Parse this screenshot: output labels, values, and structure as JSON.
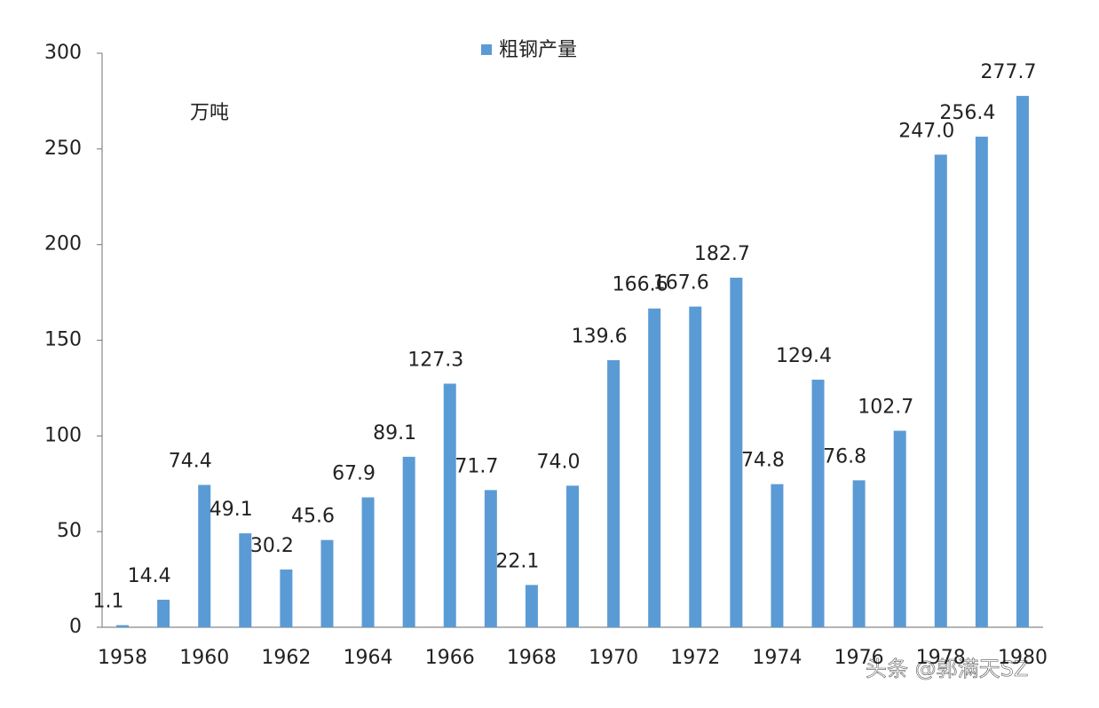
{
  "chart_data": {
    "type": "bar",
    "series": [
      {
        "name": "粗钢产量",
        "color": "#5b9bd5",
        "values": [
          1.1,
          14.4,
          74.4,
          49.1,
          30.2,
          45.6,
          67.9,
          89.1,
          127.3,
          71.7,
          22.1,
          74.0,
          139.6,
          166.6,
          167.6,
          182.7,
          74.8,
          129.4,
          76.8,
          102.7,
          247.0,
          256.4,
          277.7
        ],
        "value_labels": [
          "1.1",
          "14.4",
          "74.4",
          "49.1",
          "30.2",
          "45.6",
          "67.9",
          "89.1",
          "127.3",
          "71.7",
          "22.1",
          "74.0",
          "139.6",
          "166.6",
          "167.6",
          "182.7",
          "74.8",
          "129.4",
          "76.8",
          "102.7",
          "247.0",
          "256.4",
          "277.7"
        ]
      }
    ],
    "categories": [
      "1958",
      null,
      "1960",
      null,
      "1962",
      null,
      "1964",
      null,
      "1966",
      null,
      "1968",
      null,
      "1970",
      null,
      "1972",
      null,
      "1974",
      null,
      "1976",
      null,
      "1978",
      null,
      "1980"
    ],
    "unit_label": "万吨",
    "ylim": [
      0,
      300
    ],
    "yticks": [
      0,
      50,
      100,
      150,
      200,
      250,
      300
    ],
    "grid": false,
    "legend": "top",
    "watermark": "头条 @郭满天SZ"
  }
}
